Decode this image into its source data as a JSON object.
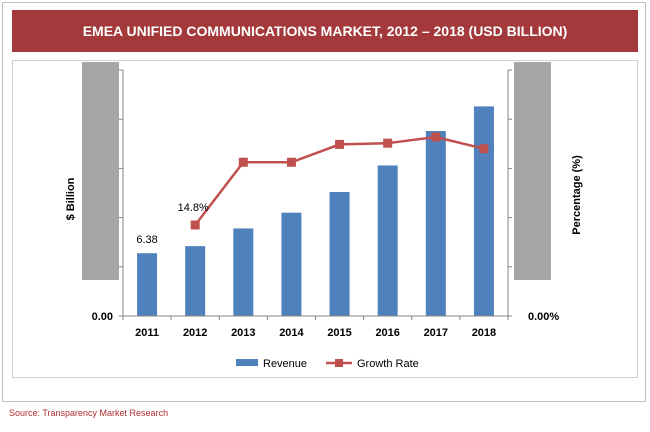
{
  "title": "EMEA UNIFIED COMMUNICATIONS MARKET, 2012 – 2018 (USD BILLION)",
  "source": "Source: Transparency Market Research",
  "colors": {
    "title_bg": "#a3393b",
    "revenue": "#4f81bd",
    "growth": "#c0504d",
    "axis_box": "#a6a6a6"
  },
  "chart_data": {
    "type": "bar",
    "categories": [
      "2011",
      "2012",
      "2013",
      "2014",
      "2015",
      "2016",
      "2017",
      "2018"
    ],
    "series": [
      {
        "name": "Revenue",
        "type": "bar",
        "axis": "left",
        "values": [
          6.38,
          7.1,
          8.9,
          10.5,
          12.6,
          15.3,
          18.8,
          21.3
        ]
      },
      {
        "name": "Growth Rate",
        "type": "line",
        "axis": "right",
        "values": [
          null,
          14.8,
          25.0,
          25.0,
          27.9,
          28.1,
          29.1,
          27.2
        ]
      }
    ],
    "ylabel": "$ Billion",
    "y2label": "Percentage (%)",
    "ylim": [
      0,
      25
    ],
    "y2lim": [
      0,
      40
    ],
    "y_tick_labels": [
      "0.00"
    ],
    "y2_tick_labels": [
      "0.00%"
    ],
    "data_labels": [
      {
        "series": "Revenue",
        "category": "2011",
        "text": "6.38"
      },
      {
        "series": "Growth Rate",
        "category": "2012",
        "text": "14.8%"
      }
    ],
    "legend": [
      "Revenue",
      "Growth Rate"
    ],
    "legend_position": "bottom",
    "grid": false
  }
}
